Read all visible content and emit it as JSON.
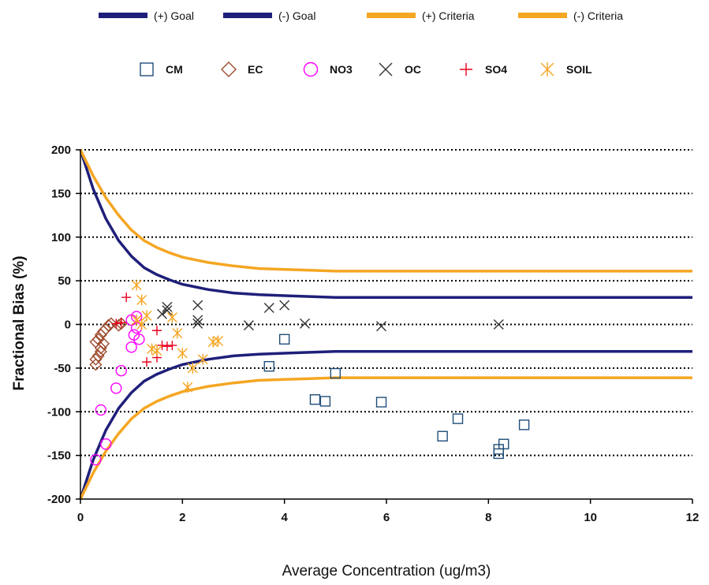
{
  "chart_data": {
    "type": "scatter",
    "xlabel": "Average Concentration (ug/m3)",
    "ylabel": "Fractional Bias (%)",
    "xlim": [
      0,
      12
    ],
    "ylim": [
      -200,
      200
    ],
    "x_ticks": [
      0,
      2,
      4,
      6,
      8,
      10,
      12
    ],
    "y_ticks": [
      200,
      150,
      100,
      50,
      0,
      -50,
      -100,
      -150,
      -200
    ],
    "grid": "horizontal dotted",
    "legend_position": "top",
    "lines": [
      {
        "name": "(+) Goal",
        "color": "#1f1f7a",
        "x": [
          0,
          0.25,
          0.5,
          0.75,
          1,
          1.25,
          1.5,
          1.75,
          2,
          2.5,
          3,
          3.5,
          4,
          4.5,
          5,
          6,
          8,
          10,
          12
        ],
        "y": [
          200,
          155,
          121,
          96,
          78,
          65,
          57,
          51,
          46,
          40,
          36,
          34,
          33,
          32,
          31,
          31,
          31,
          31,
          31
        ]
      },
      {
        "name": "(-) Goal",
        "color": "#1f1f7a",
        "x": [
          0,
          0.25,
          0.5,
          0.75,
          1,
          1.25,
          1.5,
          1.75,
          2,
          2.5,
          3,
          3.5,
          4,
          4.5,
          5,
          6,
          8,
          10,
          12
        ],
        "y": [
          -200,
          -155,
          -121,
          -96,
          -78,
          -65,
          -57,
          -51,
          -46,
          -40,
          -36,
          -34,
          -33,
          -32,
          -31,
          -31,
          -31,
          -31,
          -31
        ]
      },
      {
        "name": "(+) Criteria",
        "color": "#f5a623",
        "x": [
          0,
          0.25,
          0.5,
          0.75,
          1,
          1.25,
          1.5,
          1.75,
          2,
          2.5,
          3,
          3.5,
          4,
          4.5,
          5,
          6,
          8,
          10,
          12
        ],
        "y": [
          200,
          170,
          145,
          125,
          108,
          96,
          88,
          82,
          77,
          71,
          67,
          64,
          63,
          62,
          61,
          61,
          61,
          61,
          61
        ]
      },
      {
        "name": "(-) Criteria",
        "color": "#f5a623",
        "x": [
          0,
          0.25,
          0.5,
          0.75,
          1,
          1.25,
          1.5,
          1.75,
          2,
          2.5,
          3,
          3.5,
          4,
          4.5,
          5,
          6,
          8,
          10,
          12
        ],
        "y": [
          -200,
          -170,
          -145,
          -125,
          -108,
          -96,
          -88,
          -82,
          -77,
          -71,
          -67,
          -64,
          -63,
          -62,
          -61,
          -61,
          -61,
          -61,
          -61
        ]
      }
    ],
    "series": [
      {
        "name": "CM",
        "marker": "square",
        "color": "#1f4e79",
        "points": [
          [
            4.0,
            -17
          ],
          [
            3.7,
            -48
          ],
          [
            5.0,
            -56
          ],
          [
            4.6,
            -86
          ],
          [
            4.8,
            -88
          ],
          [
            5.9,
            -89
          ],
          [
            7.1,
            -128
          ],
          [
            7.4,
            -108
          ],
          [
            8.2,
            -148
          ],
          [
            8.2,
            -143
          ],
          [
            8.3,
            -137
          ],
          [
            8.7,
            -115
          ]
        ]
      },
      {
        "name": "EC",
        "marker": "diamond",
        "color": "#9e4b2e",
        "points": [
          [
            0.3,
            -46
          ],
          [
            0.3,
            -40
          ],
          [
            0.35,
            -36
          ],
          [
            0.4,
            -31
          ],
          [
            0.4,
            -27
          ],
          [
            0.45,
            -22
          ],
          [
            0.3,
            -20
          ],
          [
            0.35,
            -17
          ],
          [
            0.4,
            -12
          ],
          [
            0.45,
            -8
          ],
          [
            0.5,
            -5
          ],
          [
            0.55,
            -1
          ],
          [
            0.6,
            1
          ],
          [
            0.75,
            -1
          ],
          [
            0.8,
            1
          ]
        ]
      },
      {
        "name": "NO3",
        "marker": "circle",
        "color": "#ff00ff",
        "points": [
          [
            0.3,
            -155
          ],
          [
            0.5,
            -137
          ],
          [
            0.4,
            -98
          ],
          [
            0.7,
            -73
          ],
          [
            0.8,
            -53
          ],
          [
            1.0,
            -26
          ],
          [
            1.15,
            -17
          ],
          [
            1.05,
            -12
          ],
          [
            1.1,
            -4
          ],
          [
            1.0,
            5
          ],
          [
            1.1,
            9
          ]
        ]
      },
      {
        "name": "OC",
        "marker": "x",
        "color": "#333333",
        "points": [
          [
            1.6,
            12
          ],
          [
            1.7,
            16
          ],
          [
            1.7,
            20
          ],
          [
            2.3,
            1
          ],
          [
            2.3,
            5
          ],
          [
            2.3,
            22
          ],
          [
            3.3,
            -1
          ],
          [
            3.7,
            19
          ],
          [
            4.0,
            22
          ],
          [
            4.4,
            1
          ],
          [
            5.9,
            -2
          ],
          [
            8.2,
            0
          ]
        ]
      },
      {
        "name": "SO4",
        "marker": "plus",
        "color": "#e8001c",
        "points": [
          [
            0.9,
            31
          ],
          [
            0.7,
            1
          ],
          [
            0.8,
            2
          ],
          [
            1.3,
            -43
          ],
          [
            1.5,
            -38
          ],
          [
            1.6,
            -24
          ],
          [
            1.7,
            -25
          ],
          [
            1.8,
            -24
          ],
          [
            1.5,
            -7
          ]
        ]
      },
      {
        "name": "SOIL",
        "marker": "asterisk",
        "color": "#f5a623",
        "points": [
          [
            1.1,
            45
          ],
          [
            1.2,
            28
          ],
          [
            1.3,
            10
          ],
          [
            1.2,
            0
          ],
          [
            1.1,
            5
          ],
          [
            1.4,
            -28
          ],
          [
            1.8,
            8
          ],
          [
            1.9,
            -10
          ],
          [
            2.0,
            -33
          ],
          [
            2.2,
            -50
          ],
          [
            2.1,
            -72
          ],
          [
            2.4,
            -40
          ],
          [
            2.6,
            -20
          ],
          [
            2.7,
            -19
          ],
          [
            1.5,
            -30
          ]
        ]
      }
    ]
  }
}
